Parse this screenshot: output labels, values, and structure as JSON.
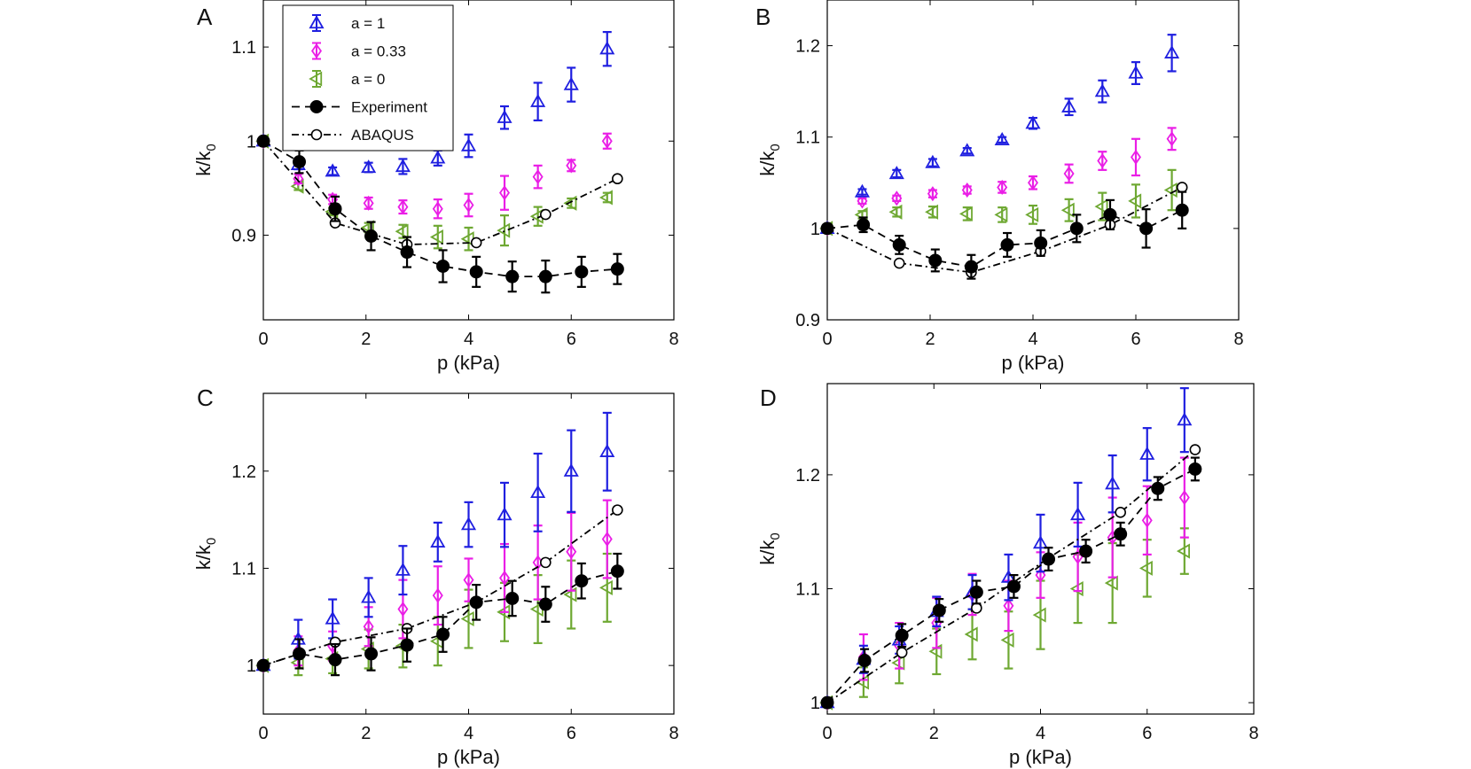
{
  "figure": {
    "legend": {
      "panel": "A",
      "entries": [
        {
          "key": "a1",
          "label": "a = 1"
        },
        {
          "key": "a033",
          "label": "a = 0.33"
        },
        {
          "key": "a0",
          "label": "a = 0"
        },
        {
          "key": "exp",
          "label": "Experiment"
        },
        {
          "key": "abq",
          "label": "ABAQUS"
        }
      ]
    },
    "styles": {
      "a1": {
        "color": "#1f1fe0",
        "marker": "triangle-up"
      },
      "a033": {
        "color": "#ea1ee6",
        "marker": "diamond"
      },
      "a0": {
        "color": "#6ea832",
        "marker": "triangle-left"
      },
      "exp": {
        "color": "#000000",
        "marker": "filled-circle",
        "line": "dashed"
      },
      "abq": {
        "color": "#000000",
        "marker": "open-circle",
        "line": "dash-dot"
      }
    }
  },
  "chart_data": [
    {
      "type": "scatter",
      "panel": "A",
      "xlabel": "p (kPa)",
      "ylabel": "k/k0",
      "xlim": [
        0,
        8
      ],
      "ylim": [
        0.81,
        1.15
      ],
      "xticks": [
        0,
        2,
        4,
        6,
        8
      ],
      "yticks": [
        0.9,
        1,
        1.1
      ],
      "ytick_labels": [
        "0.9",
        "1",
        "1.1"
      ],
      "series": [
        {
          "key": "a1",
          "x": [
            0,
            0.68,
            1.35,
            2.05,
            2.72,
            3.4,
            4.0,
            4.7,
            5.35,
            6.0,
            6.7
          ],
          "y": [
            1.0,
            0.975,
            0.968,
            0.972,
            0.973,
            0.982,
            0.995,
            1.025,
            1.042,
            1.06,
            1.098
          ],
          "err": [
            0,
            0.005,
            0.004,
            0.005,
            0.008,
            0.008,
            0.012,
            0.012,
            0.02,
            0.018,
            0.018
          ]
        },
        {
          "key": "a033",
          "x": [
            0,
            0.68,
            1.35,
            2.05,
            2.72,
            3.4,
            4.0,
            4.7,
            5.35,
            6.0,
            6.7
          ],
          "y": [
            1.0,
            0.96,
            0.938,
            0.934,
            0.93,
            0.928,
            0.932,
            0.945,
            0.962,
            0.974,
            1.0
          ],
          "err": [
            0,
            0.005,
            0.005,
            0.006,
            0.007,
            0.01,
            0.012,
            0.018,
            0.012,
            0.006,
            0.008
          ]
        },
        {
          "key": "a0",
          "x": [
            0,
            0.68,
            1.35,
            2.05,
            2.72,
            3.4,
            4.0,
            4.7,
            5.35,
            6.0,
            6.7
          ],
          "y": [
            1.0,
            0.952,
            0.925,
            0.908,
            0.904,
            0.898,
            0.896,
            0.905,
            0.92,
            0.934,
            0.94
          ],
          "err": [
            0,
            0.004,
            0.004,
            0.005,
            0.007,
            0.012,
            0.012,
            0.016,
            0.01,
            0.005,
            0.005
          ]
        },
        {
          "key": "exp",
          "x": [
            0,
            0.7,
            1.4,
            2.1,
            2.8,
            3.5,
            4.15,
            4.85,
            5.5,
            6.2,
            6.9
          ],
          "y": [
            1.0,
            0.978,
            0.928,
            0.899,
            0.882,
            0.867,
            0.861,
            0.856,
            0.856,
            0.861,
            0.864
          ],
          "err": [
            0,
            0.012,
            0.013,
            0.015,
            0.016,
            0.017,
            0.016,
            0.016,
            0.017,
            0.016,
            0.016
          ]
        },
        {
          "key": "abq",
          "x": [
            0,
            1.4,
            2.8,
            4.15,
            5.5,
            6.9
          ],
          "y": [
            1.0,
            0.913,
            0.89,
            0.892,
            0.922,
            0.96
          ],
          "err": []
        }
      ]
    },
    {
      "type": "scatter",
      "panel": "B",
      "xlabel": "p (kPa)",
      "ylabel": "k/k0",
      "xlim": [
        0,
        8
      ],
      "ylim": [
        0.9,
        1.25
      ],
      "xticks": [
        0,
        2,
        4,
        6,
        8
      ],
      "yticks": [
        0.9,
        1,
        1.1,
        1.2
      ],
      "ytick_labels": [
        "0.9",
        "1",
        "1.1",
        "1.2"
      ],
      "series": [
        {
          "key": "a1",
          "x": [
            0,
            0.68,
            1.35,
            2.05,
            2.72,
            3.4,
            4.0,
            4.7,
            5.35,
            6.0,
            6.7
          ],
          "y": [
            1.0,
            1.04,
            1.06,
            1.072,
            1.085,
            1.097,
            1.115,
            1.133,
            1.15,
            1.17,
            1.192
          ],
          "err": [
            0,
            0.003,
            0.004,
            0.004,
            0.003,
            0.003,
            0.006,
            0.009,
            0.012,
            0.012,
            0.02
          ]
        },
        {
          "key": "a033",
          "x": [
            0,
            0.68,
            1.35,
            2.05,
            2.72,
            3.4,
            4.0,
            4.7,
            5.35,
            6.0,
            6.7
          ],
          "y": [
            1.0,
            1.03,
            1.033,
            1.038,
            1.042,
            1.045,
            1.05,
            1.06,
            1.074,
            1.078,
            1.098
          ],
          "err": [
            0,
            0.003,
            0.003,
            0.004,
            0.004,
            0.006,
            0.007,
            0.01,
            0.01,
            0.02,
            0.012
          ]
        },
        {
          "key": "a0",
          "x": [
            0,
            0.68,
            1.35,
            2.05,
            2.72,
            3.4,
            4.0,
            4.7,
            5.35,
            6.0,
            6.7
          ],
          "y": [
            1.0,
            1.015,
            1.018,
            1.018,
            1.016,
            1.015,
            1.015,
            1.02,
            1.024,
            1.03,
            1.042
          ],
          "err": [
            0,
            0.004,
            0.005,
            0.006,
            0.007,
            0.008,
            0.01,
            0.012,
            0.015,
            0.018,
            0.022
          ]
        },
        {
          "key": "exp",
          "x": [
            0,
            0.7,
            1.4,
            2.1,
            2.8,
            3.5,
            4.15,
            4.85,
            5.5,
            6.2,
            6.9
          ],
          "y": [
            1.0,
            1.004,
            0.982,
            0.965,
            0.958,
            0.982,
            0.984,
            1.0,
            1.015,
            1.0,
            1.02
          ],
          "err": [
            0,
            0.008,
            0.01,
            0.012,
            0.013,
            0.013,
            0.014,
            0.015,
            0.016,
            0.021,
            0.02
          ]
        },
        {
          "key": "abq",
          "x": [
            0,
            1.4,
            2.8,
            4.15,
            5.5,
            6.9
          ],
          "y": [
            1.0,
            0.962,
            0.952,
            0.975,
            1.004,
            1.045
          ],
          "err": []
        }
      ]
    },
    {
      "type": "scatter",
      "panel": "C",
      "xlabel": "p (kPa)",
      "ylabel": "k/k0",
      "xlim": [
        0,
        8
      ],
      "ylim": [
        0.95,
        1.28
      ],
      "xticks": [
        0,
        2,
        4,
        6,
        8
      ],
      "yticks": [
        1,
        1.1,
        1.2
      ],
      "ytick_labels": [
        "1",
        "1.1",
        "1.2"
      ],
      "series": [
        {
          "key": "a1",
          "x": [
            0,
            0.68,
            1.35,
            2.05,
            2.72,
            3.4,
            4.0,
            4.7,
            5.35,
            6.0,
            6.7
          ],
          "y": [
            1.0,
            1.027,
            1.048,
            1.07,
            1.098,
            1.127,
            1.145,
            1.155,
            1.178,
            1.2,
            1.22
          ],
          "err": [
            0,
            0.02,
            0.02,
            0.02,
            0.025,
            0.02,
            0.023,
            0.033,
            0.04,
            0.042,
            0.04
          ]
        },
        {
          "key": "a033",
          "x": [
            0,
            0.68,
            1.35,
            2.05,
            2.72,
            3.4,
            4.0,
            4.7,
            5.35,
            6.0,
            6.7
          ],
          "y": [
            1.0,
            1.015,
            1.02,
            1.04,
            1.058,
            1.072,
            1.088,
            1.09,
            1.106,
            1.117,
            1.13
          ],
          "err": [
            0,
            0.015,
            0.015,
            0.02,
            0.03,
            0.03,
            0.022,
            0.035,
            0.038,
            0.04,
            0.04
          ]
        },
        {
          "key": "a0",
          "x": [
            0,
            0.68,
            1.35,
            2.05,
            2.72,
            3.4,
            4.0,
            4.7,
            5.35,
            6.0,
            6.7
          ],
          "y": [
            1.0,
            1.003,
            1.007,
            1.017,
            1.02,
            1.025,
            1.048,
            1.055,
            1.058,
            1.073,
            1.08
          ],
          "err": [
            0,
            0.013,
            0.015,
            0.02,
            0.022,
            0.025,
            0.03,
            0.03,
            0.035,
            0.035,
            0.035
          ]
        },
        {
          "key": "exp",
          "x": [
            0,
            0.7,
            1.4,
            2.1,
            2.8,
            3.5,
            4.15,
            4.85,
            5.5,
            6.2,
            6.9
          ],
          "y": [
            1.0,
            1.012,
            1.006,
            1.012,
            1.021,
            1.032,
            1.065,
            1.069,
            1.063,
            1.087,
            1.097
          ],
          "err": [
            0,
            0.015,
            0.016,
            0.017,
            0.017,
            0.018,
            0.018,
            0.018,
            0.018,
            0.018,
            0.018
          ]
        },
        {
          "key": "abq",
          "x": [
            0,
            1.4,
            2.8,
            4.15,
            5.5,
            6.9
          ],
          "y": [
            1.0,
            1.024,
            1.038,
            1.065,
            1.106,
            1.16
          ],
          "err": []
        }
      ]
    },
    {
      "type": "scatter",
      "panel": "D",
      "xlabel": "p (kPa)",
      "ylabel": "k/k0",
      "xlim": [
        0,
        8
      ],
      "ylim": [
        0.99,
        1.28
      ],
      "xticks": [
        0,
        2,
        4,
        6,
        8
      ],
      "yticks": [
        1,
        1.1,
        1.2
      ],
      "ytick_labels": [
        "1",
        "1.1",
        "1.2"
      ],
      "series": [
        {
          "key": "a1",
          "x": [
            0,
            0.68,
            1.35,
            2.05,
            2.72,
            3.4,
            4.0,
            4.7,
            5.35,
            6.0,
            6.7
          ],
          "y": [
            1.0,
            1.038,
            1.055,
            1.08,
            1.097,
            1.11,
            1.14,
            1.165,
            1.192,
            1.218,
            1.248
          ],
          "err": [
            0,
            0.012,
            0.012,
            0.013,
            0.015,
            0.02,
            0.025,
            0.028,
            0.025,
            0.023,
            0.028
          ]
        },
        {
          "key": "a033",
          "x": [
            0,
            0.68,
            1.35,
            2.05,
            2.72,
            3.4,
            4.0,
            4.7,
            5.35,
            6.0,
            6.7
          ],
          "y": [
            1.0,
            1.04,
            1.05,
            1.07,
            1.095,
            1.085,
            1.112,
            1.128,
            1.145,
            1.16,
            1.18
          ],
          "err": [
            0,
            0.02,
            0.02,
            0.022,
            0.018,
            0.022,
            0.02,
            0.03,
            0.035,
            0.03,
            0.035
          ]
        },
        {
          "key": "a0",
          "x": [
            0,
            0.68,
            1.35,
            2.05,
            2.72,
            3.4,
            4.0,
            4.7,
            5.35,
            6.0,
            6.7
          ],
          "y": [
            1.0,
            1.018,
            1.035,
            1.045,
            1.06,
            1.055,
            1.077,
            1.1,
            1.105,
            1.118,
            1.133
          ],
          "err": [
            0,
            0.013,
            0.018,
            0.02,
            0.022,
            0.025,
            0.03,
            0.03,
            0.035,
            0.025,
            0.02
          ]
        },
        {
          "key": "exp",
          "x": [
            0,
            0.7,
            1.4,
            2.1,
            2.8,
            3.5,
            4.15,
            4.85,
            5.5,
            6.2,
            6.9
          ],
          "y": [
            1.0,
            1.037,
            1.059,
            1.081,
            1.097,
            1.102,
            1.126,
            1.133,
            1.148,
            1.188,
            1.205
          ],
          "err": [
            0,
            0.01,
            0.01,
            0.01,
            0.01,
            0.01,
            0.01,
            0.01,
            0.01,
            0.01,
            0.01
          ]
        },
        {
          "key": "abq",
          "x": [
            0,
            1.4,
            2.8,
            4.15,
            5.5,
            6.9
          ],
          "y": [
            1.0,
            1.044,
            1.083,
            1.127,
            1.167,
            1.222
          ],
          "err": []
        }
      ]
    }
  ]
}
